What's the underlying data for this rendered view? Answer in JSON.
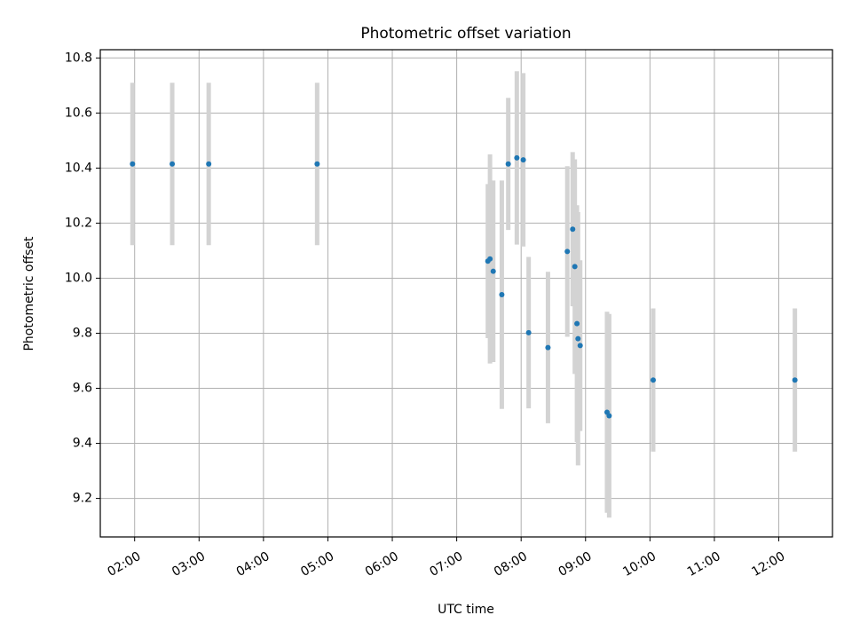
{
  "chart_data": {
    "type": "scatter",
    "title": "Photometric offset variation",
    "xlabel": "UTC time",
    "ylabel": "Photometric offset",
    "x_unit": "UTC hour of day",
    "xlim": [
      "01:28",
      "12:50"
    ],
    "ylim": [
      9.06,
      10.83
    ],
    "grid": true,
    "x_ticks": [
      {
        "value": 2,
        "label": "02:00"
      },
      {
        "value": 3,
        "label": "03:00"
      },
      {
        "value": 4,
        "label": "04:00"
      },
      {
        "value": 5,
        "label": "05:00"
      },
      {
        "value": 6,
        "label": "06:00"
      },
      {
        "value": 7,
        "label": "07:00"
      },
      {
        "value": 8,
        "label": "08:00"
      },
      {
        "value": 9,
        "label": "09:00"
      },
      {
        "value": 10,
        "label": "10:00"
      },
      {
        "value": 11,
        "label": "11:00"
      },
      {
        "value": 12,
        "label": "12:00"
      }
    ],
    "y_ticks": [
      {
        "value": 9.2,
        "label": "9.2"
      },
      {
        "value": 9.4,
        "label": "9.4"
      },
      {
        "value": 9.6,
        "label": "9.6"
      },
      {
        "value": 9.8,
        "label": "9.8"
      },
      {
        "value": 10.0,
        "label": "10.0"
      },
      {
        "value": 10.2,
        "label": "10.2"
      },
      {
        "value": 10.4,
        "label": "10.4"
      },
      {
        "value": 10.6,
        "label": "10.6"
      },
      {
        "value": 10.8,
        "label": "10.8"
      }
    ],
    "colors": {
      "marker": "#1f77b4",
      "error_bar": "#d3d3d3",
      "grid": "#b0b0b0",
      "axes": "#000000"
    },
    "points": [
      {
        "x": "01:58",
        "y": 10.415,
        "err": 0.295
      },
      {
        "x": "02:35",
        "y": 10.415,
        "err": 0.295
      },
      {
        "x": "03:09",
        "y": 10.415,
        "err": 0.295
      },
      {
        "x": "04:50",
        "y": 10.415,
        "err": 0.295
      },
      {
        "x": "07:29",
        "y": 10.062,
        "err": 0.28
      },
      {
        "x": "07:31",
        "y": 10.07,
        "err": 0.38
      },
      {
        "x": "07:34",
        "y": 10.025,
        "err": 0.33
      },
      {
        "x": "07:42",
        "y": 9.94,
        "err": 0.415
      },
      {
        "x": "07:48",
        "y": 10.415,
        "err": 0.24
      },
      {
        "x": "07:56",
        "y": 10.437,
        "err": 0.315
      },
      {
        "x": "08:02",
        "y": 10.43,
        "err": 0.315
      },
      {
        "x": "08:07",
        "y": 9.802,
        "err": 0.275
      },
      {
        "x": "08:25",
        "y": 9.748,
        "err": 0.275
      },
      {
        "x": "08:43",
        "y": 10.097,
        "err": 0.31
      },
      {
        "x": "08:48",
        "y": 10.178,
        "err": 0.28
      },
      {
        "x": "08:50",
        "y": 10.042,
        "err": 0.39
      },
      {
        "x": "08:52",
        "y": 9.835,
        "err": 0.43
      },
      {
        "x": "08:53",
        "y": 9.78,
        "err": 0.46
      },
      {
        "x": "08:55",
        "y": 9.755,
        "err": 0.31
      },
      {
        "x": "09:20",
        "y": 9.513,
        "err": 0.365
      },
      {
        "x": "09:22",
        "y": 9.5,
        "err": 0.37
      },
      {
        "x": "10:03",
        "y": 9.63,
        "err": 0.26
      },
      {
        "x": "12:15",
        "y": 9.63,
        "err": 0.26
      }
    ]
  }
}
